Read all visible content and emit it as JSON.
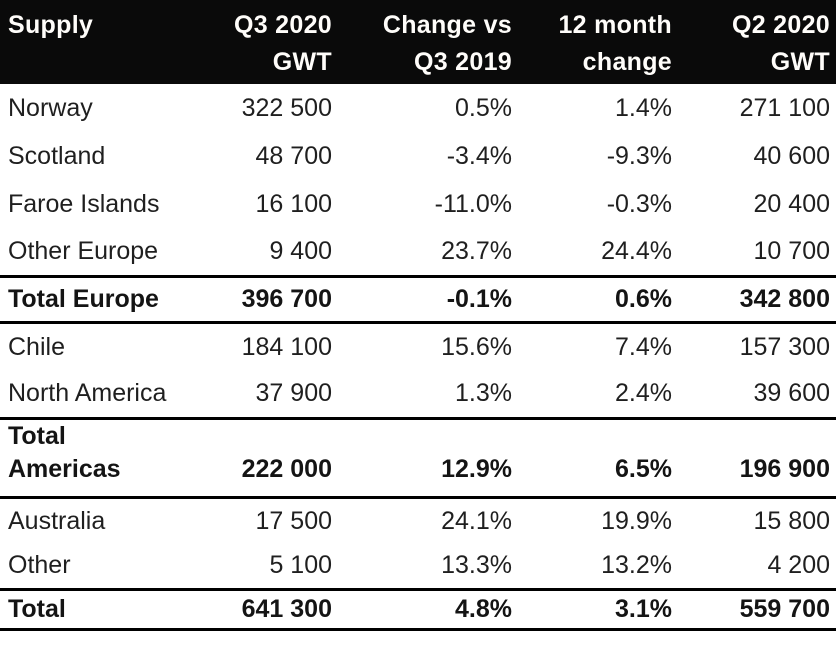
{
  "chart_data": {
    "type": "table",
    "title": "Supply",
    "unit": "GWT",
    "columns": [
      {
        "label": "Supply",
        "line1": "Supply",
        "line2": ""
      },
      {
        "label": "Q3 2020 GWT",
        "line1": "Q3 2020",
        "line2": "GWT"
      },
      {
        "label": "Change vs Q3 2019",
        "line1": "Change vs",
        "line2": "Q3 2019"
      },
      {
        "label": "12 month change",
        "line1": "12 month",
        "line2": "change"
      },
      {
        "label": "Q2 2020 GWT",
        "line1": "Q2 2020",
        "line2": "GWT"
      }
    ],
    "rows": [
      {
        "supply": "Norway",
        "q3_2020_gwt": "322 500",
        "change_vs_q3_2019": "0.5%",
        "twelve_month_change": "1.4%",
        "q2_2020_gwt": "271 100",
        "row_type": "item"
      },
      {
        "supply": "Scotland",
        "q3_2020_gwt": "48 700",
        "change_vs_q3_2019": "-3.4%",
        "twelve_month_change": "-9.3%",
        "q2_2020_gwt": "40 600",
        "row_type": "item"
      },
      {
        "supply": "Faroe Islands",
        "q3_2020_gwt": "16 100",
        "change_vs_q3_2019": "-11.0%",
        "twelve_month_change": "-0.3%",
        "q2_2020_gwt": "20 400",
        "row_type": "item"
      },
      {
        "supply": "Other Europe",
        "q3_2020_gwt": "9 400",
        "change_vs_q3_2019": "23.7%",
        "twelve_month_change": "24.4%",
        "q2_2020_gwt": "10 700",
        "row_type": "item"
      },
      {
        "supply": "Total Europe",
        "q3_2020_gwt": "396 700",
        "change_vs_q3_2019": "-0.1%",
        "twelve_month_change": "0.6%",
        "q2_2020_gwt": "342 800",
        "row_type": "total"
      },
      {
        "supply": "Chile",
        "q3_2020_gwt": "184 100",
        "change_vs_q3_2019": "15.6%",
        "twelve_month_change": "7.4%",
        "q2_2020_gwt": "157 300",
        "row_type": "item"
      },
      {
        "supply": "North America",
        "q3_2020_gwt": "37 900",
        "change_vs_q3_2019": "1.3%",
        "twelve_month_change": "2.4%",
        "q2_2020_gwt": "39 600",
        "row_type": "item"
      },
      {
        "supply": "Total\nAmericas",
        "q3_2020_gwt": "222 000",
        "change_vs_q3_2019": "12.9%",
        "twelve_month_change": "6.5%",
        "q2_2020_gwt": "196 900",
        "row_type": "total"
      },
      {
        "supply": "Australia",
        "q3_2020_gwt": "17 500",
        "change_vs_q3_2019": "24.1%",
        "twelve_month_change": "19.9%",
        "q2_2020_gwt": "15 800",
        "row_type": "item"
      },
      {
        "supply": "Other",
        "q3_2020_gwt": "5 100",
        "change_vs_q3_2019": "13.3%",
        "twelve_month_change": "13.2%",
        "q2_2020_gwt": "4 200",
        "row_type": "item"
      },
      {
        "supply": "Total",
        "q3_2020_gwt": "641 300",
        "change_vs_q3_2019": "4.8%",
        "twelve_month_change": "3.1%",
        "q2_2020_gwt": "559 700",
        "row_type": "total"
      }
    ],
    "layout": {
      "header_style": "black-band",
      "numeric_alignment": "right",
      "total_row_rules": "3px solid black top and bottom"
    }
  },
  "colors": {
    "header_bg": "#0a0a0a",
    "header_text": "#ffffff",
    "body_text": "#1f1f1f",
    "rule": "#000000",
    "page_bg": "#ffffff"
  }
}
